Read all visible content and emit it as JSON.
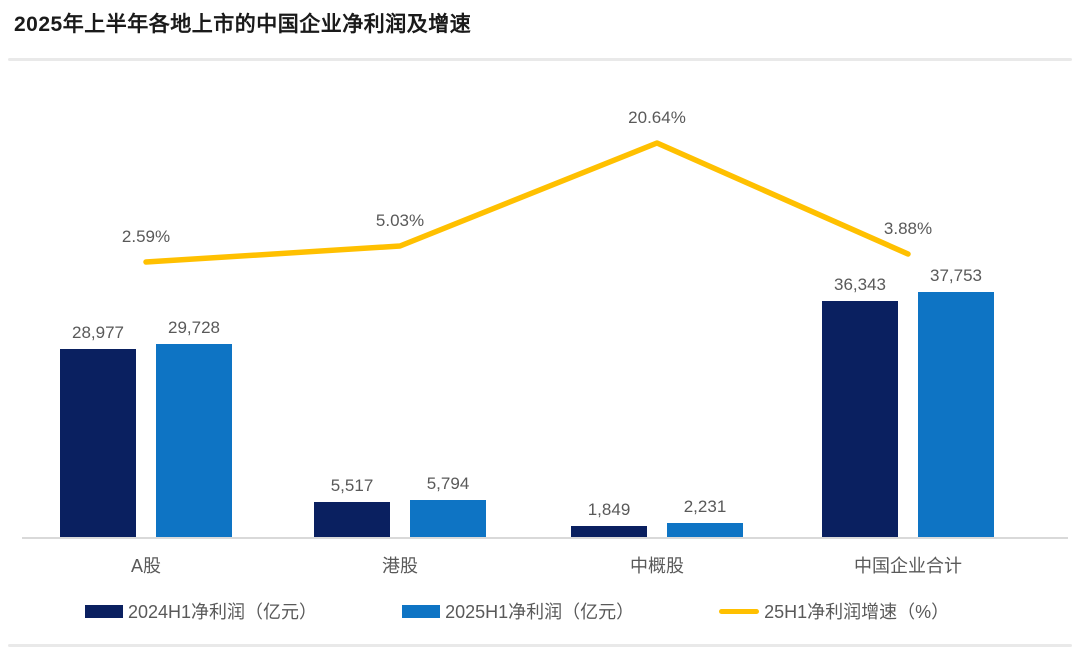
{
  "page": {
    "title": "2025年上半年各地上市的中国企业净利润及增速"
  },
  "chart_data": {
    "type": "combo-bar-line",
    "title": "2025年上半年各地上市的中国企业净利润及增速",
    "categories": [
      "A股",
      "港股",
      "中概股",
      "中国企业合计"
    ],
    "series": [
      {
        "name": "2024H1净利润（亿元）",
        "type": "bar",
        "color": "#0a2060",
        "values": [
          28977,
          5517,
          1849,
          36343
        ],
        "labels": [
          "28,977",
          "5,517",
          "1,849",
          "36,343"
        ]
      },
      {
        "name": "2025H1净利润（亿元）",
        "type": "bar",
        "color": "#0e74c4",
        "values": [
          29728,
          5794,
          2231,
          37753
        ],
        "labels": [
          "29,728",
          "5,794",
          "2,231",
          "37,753"
        ]
      },
      {
        "name": "25H1净利润增速（%）",
        "type": "line",
        "color": "#ffc000",
        "values": [
          2.59,
          5.03,
          20.64,
          3.88
        ],
        "labels": [
          "2.59%",
          "5.03%",
          "20.64%",
          "3.88%"
        ]
      }
    ],
    "value_axis_visible": false,
    "secondary_axis_visible": false,
    "grid": false,
    "data_labels": true,
    "legend_position": "bottom",
    "colors": {
      "bar_2024": "#0a2060",
      "bar_2025": "#0e74c4",
      "growth_line": "#ffc000",
      "label_text": "#595959",
      "title_text": "#1a1a1a",
      "divider": "#e9e9e9",
      "axis_line": "#d9d9d9"
    }
  }
}
